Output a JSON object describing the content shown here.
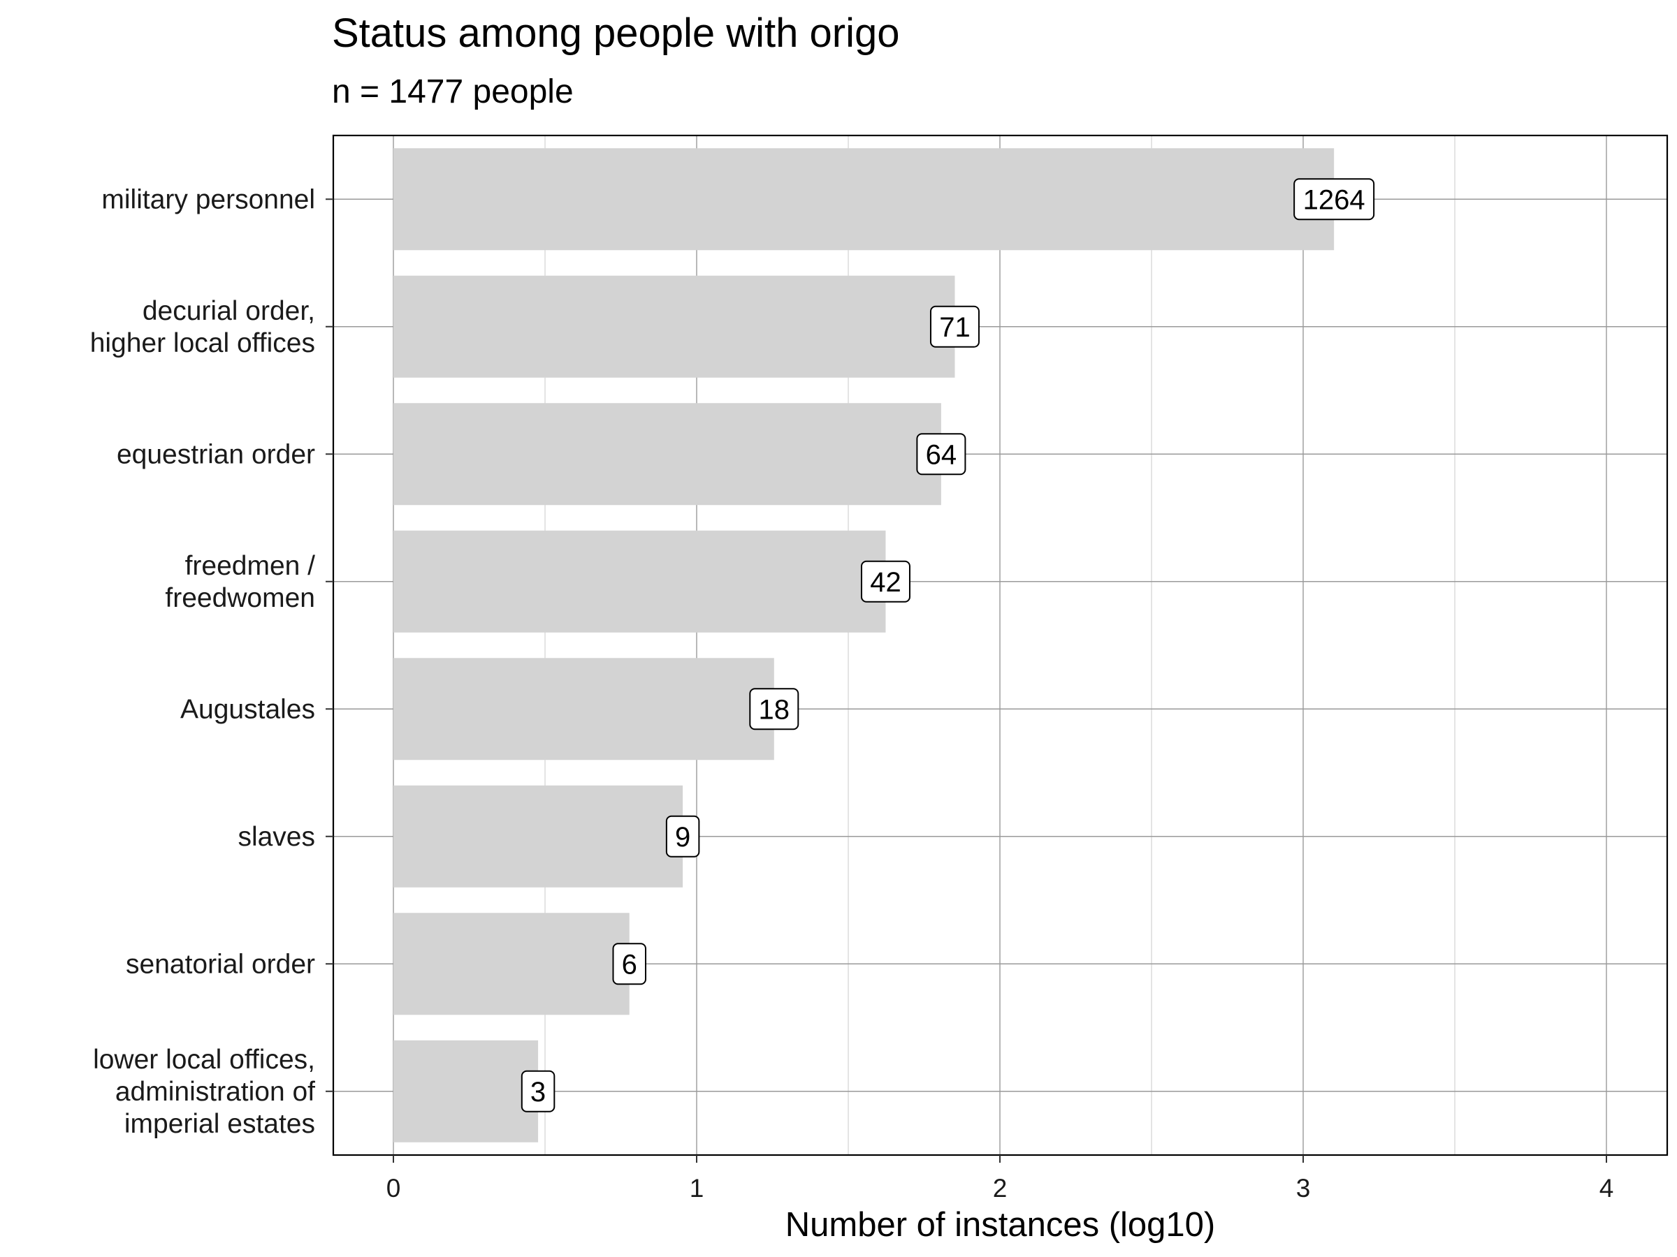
{
  "chart_data": {
    "type": "bar",
    "orientation": "horizontal",
    "title": "Status among people with origo",
    "subtitle": "n = 1477 people",
    "xlabel": "Number of instances (log10)",
    "ylabel": "",
    "xlim": [
      -0.2,
      4.15
    ],
    "x_ticks": [
      0,
      1,
      2,
      3,
      4
    ],
    "grid": true,
    "bar_color": "#d3d3d3",
    "categories": [
      [
        "military personnel"
      ],
      [
        "decurial order,",
        "higher local offices"
      ],
      [
        "equestrian order"
      ],
      [
        "freedmen /",
        "freedwomen"
      ],
      [
        "Augustales"
      ],
      [
        "slaves"
      ],
      [
        "senatorial order"
      ],
      [
        "lower local offices,",
        "administration of",
        "imperial estates"
      ]
    ],
    "values": [
      3.1017,
      1.8513,
      1.8062,
      1.6232,
      1.2553,
      0.9542,
      0.7782,
      0.4771
    ],
    "labels": [
      "1264",
      "71",
      "64",
      "42",
      "18",
      "9",
      "6",
      "3"
    ]
  }
}
